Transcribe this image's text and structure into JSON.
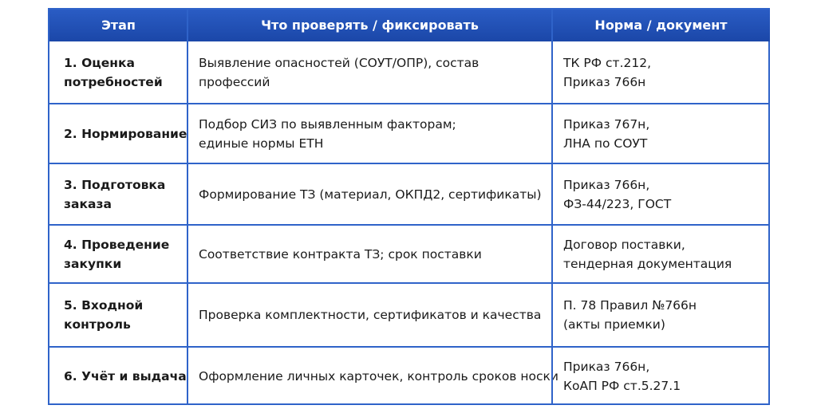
{
  "table": {
    "header": [
      "Этап",
      "Что проверять / фиксировать",
      "Норма / документ"
    ],
    "rows": [
      [
        [
          "1. Оценка",
          "потребностей"
        ],
        [
          "Выявление опасностей (СОУТ/ОПР), состав",
          "профессий"
        ],
        [
          "ТК РФ ст.212,",
          "Приказ 766н"
        ]
      ],
      [
        [
          "2. Нормирование"
        ],
        [
          "Подбор СИЗ по выявленным факторам;",
          "единые нормы ЕТН"
        ],
        [
          "Приказ 767н,",
          "ЛНА по СОУТ"
        ]
      ],
      [
        [
          "3. Подготовка",
          "заказа"
        ],
        [
          "Формирование ТЗ (материал, ОКПД2, сертификаты)"
        ],
        [
          "Приказ 766н,",
          "ФЗ-44/223, ГОСТ"
        ]
      ],
      [
        [
          "4. Проведение",
          "закупки"
        ],
        [
          "Соответствие контракта  ТЗ; срок поставки"
        ],
        [
          "Договор поставки,",
          "тендерная документация"
        ]
      ],
      [
        [
          "5. Входной",
          "контроль"
        ],
        [
          "Проверка комплектности, сертификатов и качества"
        ],
        [
          "П. 78 Правил №766н",
          "(акты приемки)"
        ]
      ],
      [
        [
          "6. Учёт и выдача"
        ],
        [
          "Оформление личных карточек, контроль сроков носки"
        ],
        [
          "Приказ 766н,",
          "КоАП РФ ст.5.27.1"
        ]
      ]
    ]
  }
}
